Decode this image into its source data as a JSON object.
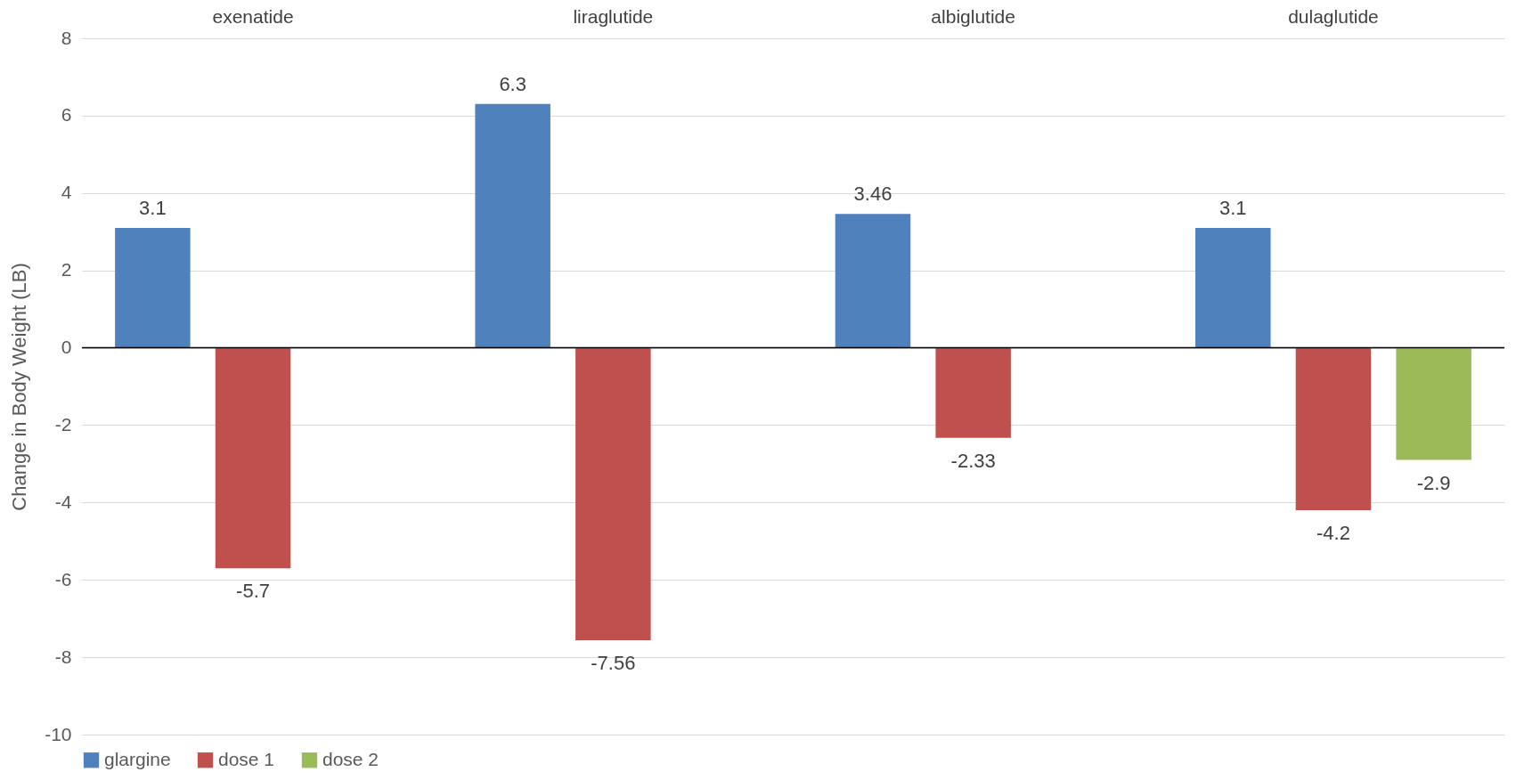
{
  "chart_data": {
    "type": "bar",
    "ylabel": "Change in Body Weight (LB)",
    "categories": [
      "exenatide",
      "liraglutide",
      "albiglutide",
      "dulaglutide"
    ],
    "series": [
      {
        "name": "glargine",
        "color": "#4f81bd",
        "values": [
          3.1,
          6.3,
          3.46,
          3.1
        ]
      },
      {
        "name": "dose 1",
        "color": "#c0504d",
        "values": [
          -5.7,
          -7.56,
          -2.33,
          -4.2
        ]
      },
      {
        "name": "dose 2",
        "color": "#9bbb59",
        "values": [
          null,
          null,
          null,
          -2.9
        ]
      }
    ],
    "ylim": [
      -10,
      8
    ],
    "yticks": [
      -10,
      -8,
      -6,
      -4,
      -2,
      0,
      2,
      4,
      6,
      8
    ],
    "grid": "y",
    "legend": "bottom",
    "data_labels": true
  }
}
